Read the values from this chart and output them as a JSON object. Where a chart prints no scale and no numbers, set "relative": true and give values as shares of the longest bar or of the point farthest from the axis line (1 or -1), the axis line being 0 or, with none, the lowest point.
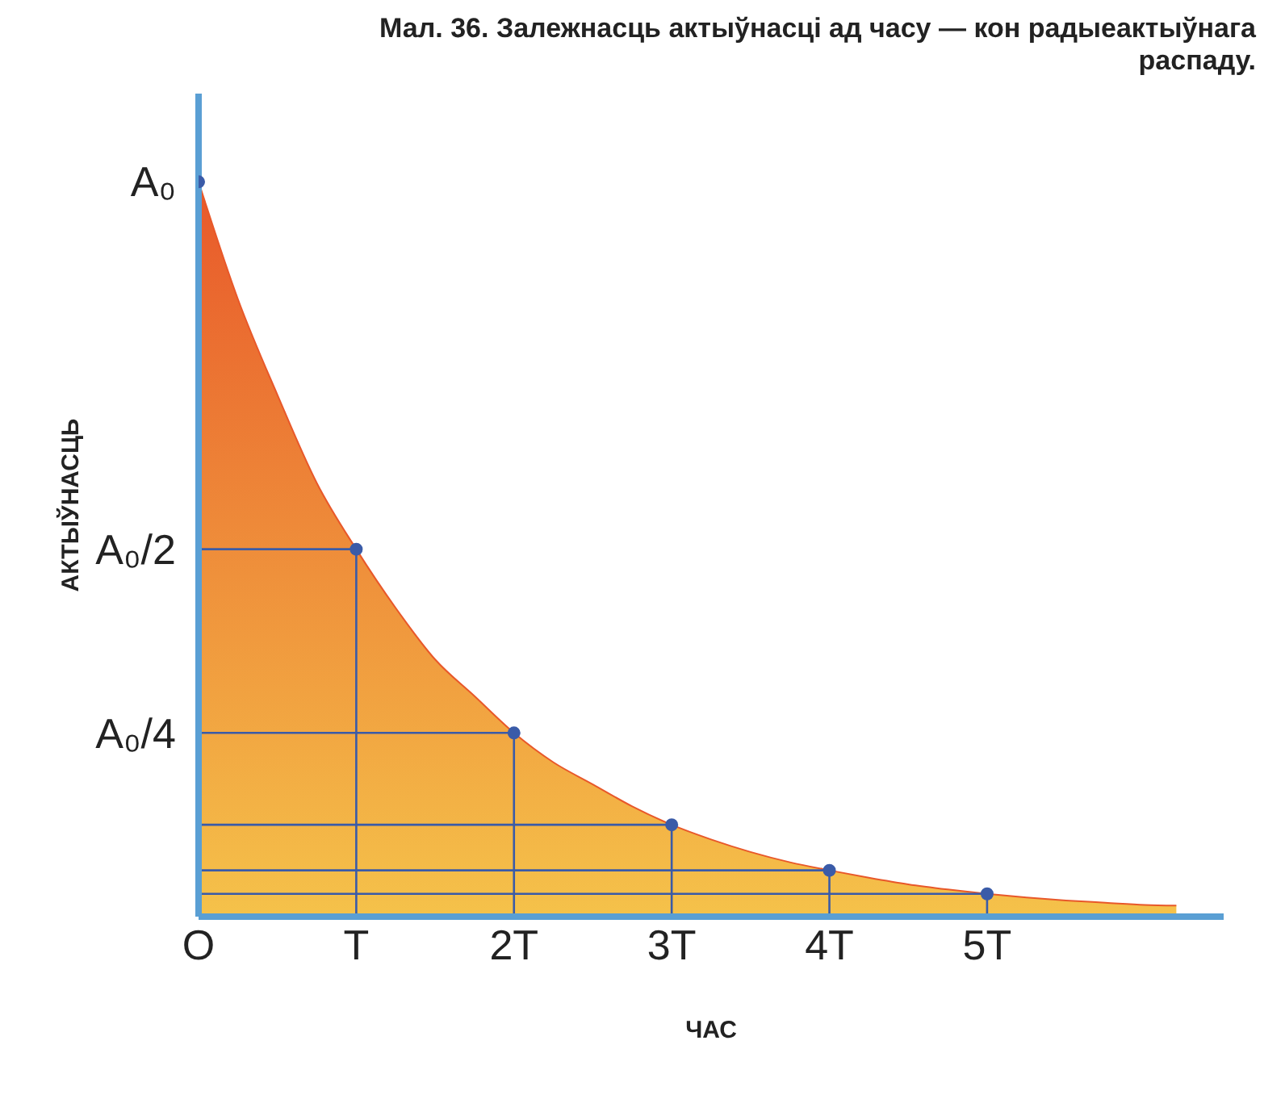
{
  "chart_data": {
    "type": "area",
    "title": "Мал. 36. Залежнасць актыўнасці ад часу — кон радыеактыўнага распаду.",
    "xlabel": "ЧАС",
    "ylabel": "АКТЫЎНАСЦЬ",
    "xlim": [
      0,
      6.5
    ],
    "relative": true,
    "annotations": [
      "A₀",
      "A₀/2",
      "A₀/4"
    ],
    "xticks": [
      {
        "value": 0,
        "label": "O"
      },
      {
        "value": 1,
        "label": "T"
      },
      {
        "value": 2,
        "label": "2T"
      },
      {
        "value": 3,
        "label": "3T"
      },
      {
        "value": 4,
        "label": "4T"
      },
      {
        "value": 5,
        "label": "5T"
      }
    ],
    "series": [
      {
        "color": "#e8582a",
        "x": [
          0,
          0.25,
          0.5,
          0.75,
          1,
          1.25,
          1.5,
          1.75,
          2,
          2.25,
          2.5,
          2.75,
          3,
          3.25,
          3.5,
          3.75,
          4,
          4.25,
          4.5,
          4.75,
          5,
          5.25,
          5.5,
          5.75,
          6,
          6.2
        ],
        "values": [
          1,
          0.84,
          0.71,
          0.59,
          0.5,
          0.42,
          0.35,
          0.3,
          0.25,
          0.21,
          0.18,
          0.15,
          0.125,
          0.105,
          0.088,
          0.074,
          0.063,
          0.053,
          0.044,
          0.037,
          0.031,
          0.026,
          0.022,
          0.019,
          0.016,
          0.015
        ]
      },
      {
        "type": "scatter",
        "color": "#3a5ba8",
        "marker": "circle",
        "x": [
          0,
          1,
          2,
          3,
          4,
          5
        ],
        "values": [
          1,
          0.5,
          0.25,
          0.125,
          0.063,
          0.031
        ]
      },
      {
        "type": "line",
        "color": "#3a5ba8",
        "marker": "none",
        "x": [
          0,
          1,
          1
        ],
        "values": [
          0.5,
          0.5,
          0
        ]
      },
      {
        "type": "line",
        "color": "#3a5ba8",
        "marker": "none",
        "x": [
          0,
          2,
          2
        ],
        "values": [
          0.25,
          0.25,
          0
        ]
      },
      {
        "type": "line",
        "color": "#3a5ba8",
        "marker": "none",
        "x": [
          0,
          3,
          3
        ],
        "values": [
          0.125,
          0.125,
          0
        ]
      },
      {
        "type": "line",
        "color": "#3a5ba8",
        "marker": "none",
        "x": [
          0,
          4,
          4
        ],
        "values": [
          0.063,
          0.063,
          0
        ]
      },
      {
        "type": "line",
        "color": "#3a5ba8",
        "marker": "none",
        "x": [
          0,
          5,
          5
        ],
        "values": [
          0.031,
          0.031,
          0
        ]
      }
    ],
    "legend": false,
    "grid": false
  }
}
